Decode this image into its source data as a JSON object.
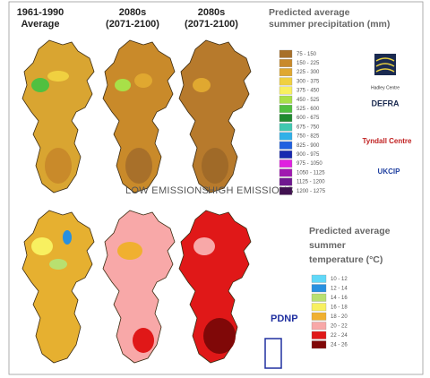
{
  "columns": [
    {
      "line1": "1961-1990",
      "line2": "Average"
    },
    {
      "line1": "2080s",
      "line2": "(2071-2100)"
    },
    {
      "line1": "2080s",
      "line2": "(2071-2100)"
    }
  ],
  "precipitation_legend": {
    "title_lines": [
      "Predicted average",
      "summer precipitation (mm)"
    ],
    "items": [
      {
        "label": "75 - 150",
        "color": "#a8702a"
      },
      {
        "label": "150 - 225",
        "color": "#c98a2a"
      },
      {
        "label": "225 - 300",
        "color": "#e0a830"
      },
      {
        "label": "300 - 375",
        "color": "#f0d040"
      },
      {
        "label": "375 - 450",
        "color": "#f8f060"
      },
      {
        "label": "450 - 525",
        "color": "#a8e048"
      },
      {
        "label": "525 - 600",
        "color": "#50c040"
      },
      {
        "label": "600 - 675",
        "color": "#208a30"
      },
      {
        "label": "675 - 750",
        "color": "#40c8b0"
      },
      {
        "label": "750 - 825",
        "color": "#30b0e8"
      },
      {
        "label": "825 - 900",
        "color": "#2060e0"
      },
      {
        "label": "900 - 975",
        "color": "#1828b0"
      },
      {
        "label": "975 - 1050",
        "color": "#e020e0"
      },
      {
        "label": "1050 - 1125",
        "color": "#a018b0"
      },
      {
        "label": "1125 - 1200",
        "color": "#701890"
      },
      {
        "label": "1200 - 1275",
        "color": "#401050"
      }
    ]
  },
  "logos": [
    "Hadley Centre",
    "DEFRA",
    "Tyndall Centre",
    "UKCIP"
  ],
  "scenarios": [
    "LOW EMISSIONS",
    "HIGH EMISSIONS"
  ],
  "temperature_legend": {
    "title_lines": [
      "Predicted average",
      "summer",
      "temperature (°C)"
    ],
    "items": [
      {
        "label": "10 - 12",
        "color": "#60d8f8"
      },
      {
        "label": "12 - 14",
        "color": "#2890e0"
      },
      {
        "label": "14 - 16",
        "color": "#b8e070"
      },
      {
        "label": "16 - 18",
        "color": "#f8f060"
      },
      {
        "label": "18 - 20",
        "color": "#f0b030"
      },
      {
        "label": "20 - 22",
        "color": "#f8a8a8"
      },
      {
        "label": "22 - 24",
        "color": "#e01818"
      },
      {
        "label": "24 - 26",
        "color": "#800808"
      }
    ]
  },
  "annotation": "PDNP"
}
